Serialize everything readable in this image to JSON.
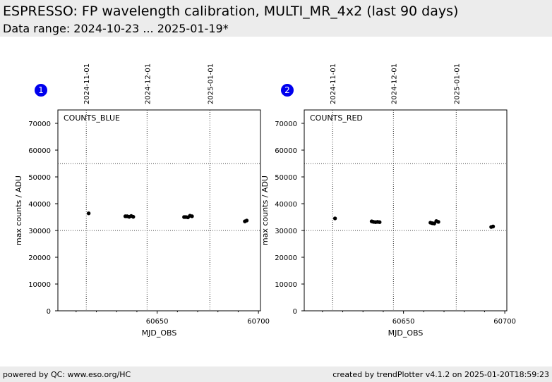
{
  "header": {
    "title": "ESPRESSO: FP wavelength calibration, MULTI_MR_4x2 (last 90 days)",
    "subtitle": "Data range: 2024-10-23 ... 2025-01-19*"
  },
  "footer": {
    "left": "powered by QC: www.eso.org/HC",
    "right": "created by trendPlotter v4.1.2 on 2025-01-20T18:59:23"
  },
  "colors": {
    "marker": "#000000",
    "badge": "#0000ee",
    "header_bg": "#ececec"
  },
  "chart_data": [
    {
      "type": "scatter",
      "badge": "1",
      "panel_label": "COUNTS_BLUE",
      "xlabel": "MJD_OBS",
      "ylabel": "max counts / ADU",
      "xlim": [
        60601,
        60701
      ],
      "ylim": [
        0,
        75000
      ],
      "x_ticks": [
        60650,
        60700
      ],
      "y_ticks": [
        0,
        10000,
        20000,
        30000,
        40000,
        50000,
        60000,
        70000
      ],
      "date_ticks": [
        {
          "label": "2024-11-01",
          "mjd": 60615
        },
        {
          "label": "2024-12-01",
          "mjd": 60645
        },
        {
          "label": "2025-01-01",
          "mjd": 60676
        }
      ],
      "h_reference_lines": [
        30000,
        55000
      ],
      "grid": false,
      "points": [
        {
          "x": 60616.2,
          "y": 36400
        },
        {
          "x": 60634.3,
          "y": 35300
        },
        {
          "x": 60635.2,
          "y": 35300
        },
        {
          "x": 60636.2,
          "y": 35100
        },
        {
          "x": 60637.2,
          "y": 35400
        },
        {
          "x": 60638.2,
          "y": 35100
        },
        {
          "x": 60663.3,
          "y": 35000
        },
        {
          "x": 60664.2,
          "y": 35000
        },
        {
          "x": 60665.2,
          "y": 34900
        },
        {
          "x": 60666.2,
          "y": 35500
        },
        {
          "x": 60667.2,
          "y": 35300
        },
        {
          "x": 60693.3,
          "y": 33400
        },
        {
          "x": 60694.2,
          "y": 33700
        }
      ]
    },
    {
      "type": "scatter",
      "badge": "2",
      "panel_label": "COUNTS_RED",
      "xlabel": "MJD_OBS",
      "ylabel": "max counts / ADU",
      "xlim": [
        60601,
        60701
      ],
      "ylim": [
        0,
        75000
      ],
      "x_ticks": [
        60650,
        60700
      ],
      "y_ticks": [
        0,
        10000,
        20000,
        30000,
        40000,
        50000,
        60000,
        70000
      ],
      "date_ticks": [
        {
          "label": "2024-11-01",
          "mjd": 60615
        },
        {
          "label": "2024-12-01",
          "mjd": 60645
        },
        {
          "label": "2025-01-01",
          "mjd": 60676
        }
      ],
      "h_reference_lines": [
        30000,
        55000
      ],
      "grid": false,
      "points": [
        {
          "x": 60616.2,
          "y": 34500
        },
        {
          "x": 60634.3,
          "y": 33400
        },
        {
          "x": 60635.2,
          "y": 33200
        },
        {
          "x": 60636.2,
          "y": 33100
        },
        {
          "x": 60637.2,
          "y": 33200
        },
        {
          "x": 60638.2,
          "y": 33100
        },
        {
          "x": 60663.3,
          "y": 32900
        },
        {
          "x": 60664.2,
          "y": 32700
        },
        {
          "x": 60665.2,
          "y": 32600
        },
        {
          "x": 60666.2,
          "y": 33500
        },
        {
          "x": 60667.2,
          "y": 33200
        },
        {
          "x": 60693.3,
          "y": 31300
        },
        {
          "x": 60694.2,
          "y": 31500
        }
      ]
    }
  ]
}
